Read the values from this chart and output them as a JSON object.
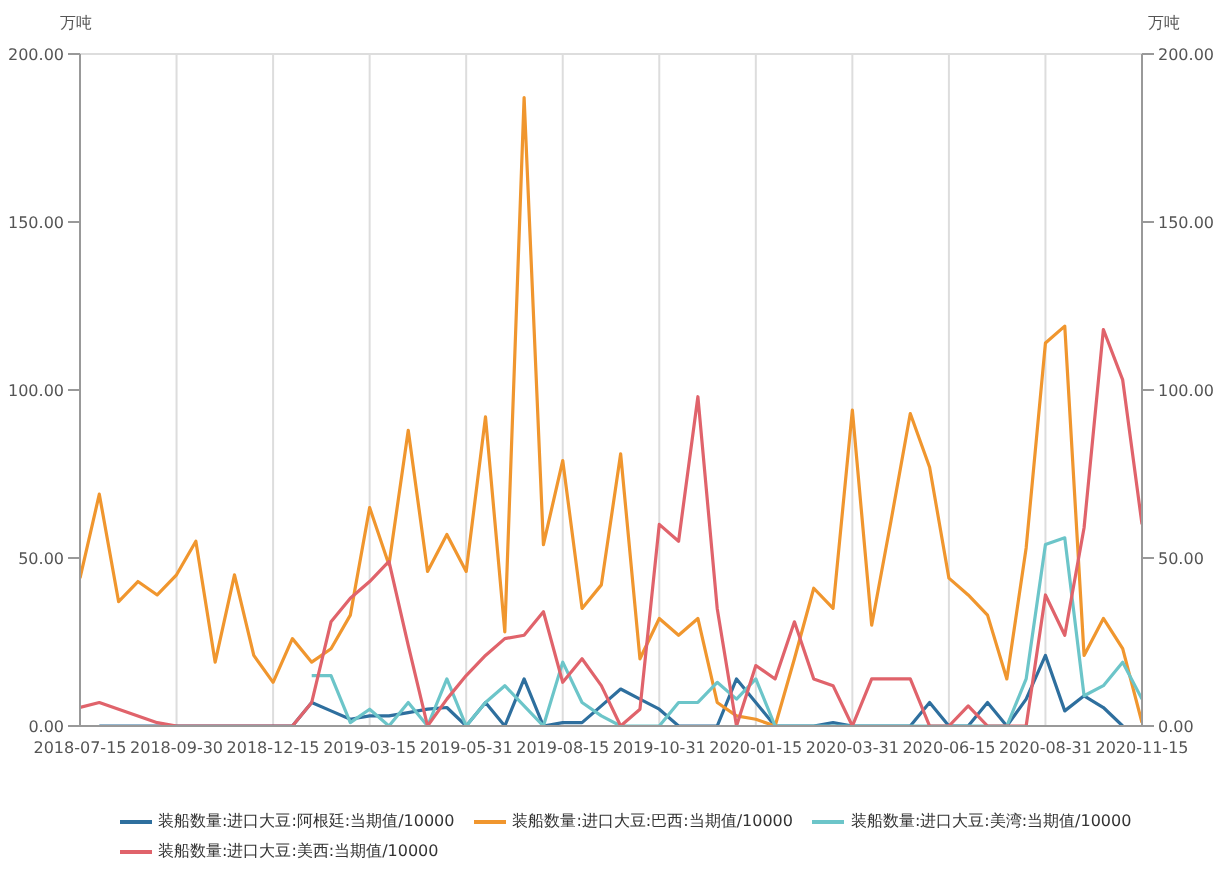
{
  "chart_data": {
    "type": "line",
    "ylabel": "万吨",
    "y2label": "万吨",
    "categories": [
      "2018-07-15",
      null,
      null,
      null,
      null,
      "2018-09-30",
      null,
      null,
      null,
      null,
      "2018-12-15",
      null,
      null,
      null,
      null,
      "2019-03-15",
      null,
      null,
      null,
      null,
      "2019-05-31",
      null,
      null,
      null,
      null,
      "2019-08-15",
      null,
      null,
      null,
      null,
      "2019-10-31",
      null,
      null,
      null,
      null,
      "2020-01-15",
      null,
      null,
      null,
      null,
      "2020-03-31",
      null,
      null,
      null,
      null,
      "2020-06-15",
      null,
      null,
      null,
      null,
      "2020-08-31",
      null,
      null,
      null,
      null,
      "2020-11-15"
    ],
    "series": [
      {
        "name": "装船数量:进口大豆:阿根廷:当期值/10000",
        "color": "#2e6f9e",
        "values": [
          null,
          0,
          0,
          0,
          0,
          0,
          0,
          0,
          0,
          0,
          0,
          0,
          7,
          4.5,
          2,
          3,
          3,
          4,
          5,
          5.5,
          0,
          7,
          0,
          14,
          0,
          1,
          1,
          6,
          11,
          8,
          5,
          0,
          0,
          0,
          14,
          7,
          0,
          0,
          0,
          1,
          0,
          0,
          0,
          0,
          7,
          0,
          0,
          7,
          0,
          8,
          21,
          4.5,
          9,
          5.5,
          0,
          null
        ]
      },
      {
        "name": "装船数量:进口大豆:巴西:当期值/10000",
        "color": "#f0962e",
        "values": [
          44,
          69,
          37,
          43,
          39,
          45,
          55,
          19,
          45,
          21,
          13,
          26,
          19,
          23,
          33,
          65,
          48,
          88,
          46,
          57,
          46,
          92,
          28,
          187,
          54,
          79,
          35,
          42,
          81,
          20,
          32,
          27,
          32,
          7,
          3,
          2,
          0,
          20,
          41,
          35,
          94,
          30,
          61,
          93,
          77,
          44,
          39,
          33,
          14,
          53,
          114,
          119,
          21,
          32,
          23,
          1
        ]
      },
      {
        "name": "装船数量:进口大豆:美湾:当期值/10000",
        "color": "#6cc5c9",
        "values": [
          null,
          null,
          null,
          null,
          null,
          null,
          null,
          null,
          null,
          null,
          null,
          null,
          15,
          15,
          1,
          5,
          0,
          7,
          0,
          14,
          0,
          7,
          12,
          6,
          0,
          19,
          7,
          3,
          0,
          0,
          0,
          7,
          7,
          13,
          8,
          14,
          0,
          0,
          0,
          0,
          0,
          0,
          0,
          0,
          0,
          0,
          0,
          0,
          0,
          14,
          54,
          56,
          9,
          12,
          19,
          8
        ]
      },
      {
        "name": "装船数量:进口大豆:美西:当期值/10000",
        "color": "#e0636b",
        "values": [
          5.5,
          7,
          5,
          3,
          1,
          0,
          0,
          0,
          0,
          0,
          0,
          0,
          7,
          31,
          38,
          43,
          49,
          24,
          0,
          8,
          15,
          21,
          26,
          27,
          34,
          13,
          20,
          12,
          0,
          5,
          60,
          55,
          98,
          35,
          0,
          18,
          14,
          31,
          14,
          12,
          0,
          14,
          14,
          14,
          0,
          0,
          6,
          0,
          0,
          0,
          39,
          27,
          59,
          118,
          103,
          60
        ]
      }
    ],
    "ylim": [
      0,
      200
    ],
    "yticks": [
      {
        "value": 0,
        "label": "0.00"
      },
      {
        "value": 50,
        "label": "50.00"
      },
      {
        "value": 100,
        "label": "100.00"
      },
      {
        "value": 150,
        "label": "150.00"
      },
      {
        "value": 200,
        "label": "200.00"
      }
    ],
    "y2lim": [
      0,
      200
    ],
    "y2ticks": [
      {
        "value": 0,
        "label": "0.00"
      },
      {
        "value": 50,
        "label": "50.00"
      },
      {
        "value": 100,
        "label": "100.00"
      },
      {
        "value": 150,
        "label": "150.00"
      },
      {
        "value": 200,
        "label": "200.00"
      }
    ],
    "grid": true,
    "legend": "bottom",
    "marker": "none",
    "line_style": "solid"
  }
}
